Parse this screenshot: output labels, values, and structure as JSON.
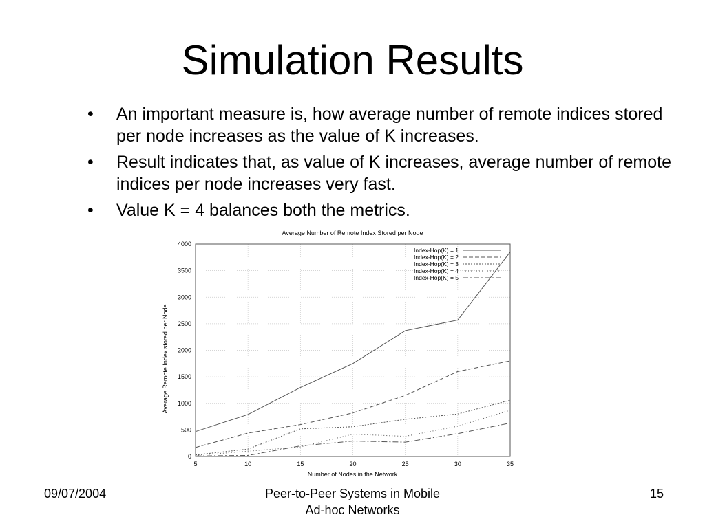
{
  "slide": {
    "title": "Simulation Results",
    "bullets": [
      "An important measure is, how average number of remote indices stored per node increases as the value of K increases.",
      "Result indicates that, as value of K increases, average number of remote indices per node increases very fast.",
      "Value K = 4 balances both the metrics."
    ],
    "bullet_symbol": "•"
  },
  "footer": {
    "date": "09/07/2004",
    "center_line1": "Peer-to-Peer Systems in Mobile",
    "center_line2": "Ad-hoc Networks",
    "page": "15"
  },
  "chart_data": {
    "type": "line",
    "title": "Average Number of Remote Index Stored per Node",
    "xlabel": "Number of Nodes in the Network",
    "ylabel": "Average Remote Index stored per Node",
    "x": [
      5,
      10,
      15,
      20,
      25,
      30,
      35
    ],
    "xlim": [
      5,
      35
    ],
    "ylim": [
      0,
      4000
    ],
    "xticks": [
      5,
      10,
      15,
      20,
      25,
      30,
      35
    ],
    "yticks": [
      0,
      500,
      1000,
      1500,
      2000,
      2500,
      3000,
      3500,
      4000
    ],
    "grid": true,
    "legend_position": "top-right",
    "series": [
      {
        "name": "Index-Hop(K) = 1",
        "values": [
          470,
          790,
          1300,
          1750,
          2370,
          2570,
          3850
        ],
        "dash": ""
      },
      {
        "name": "Index-Hop(K) = 2",
        "values": [
          170,
          440,
          600,
          820,
          1150,
          1600,
          1800
        ],
        "dash": "6,3"
      },
      {
        "name": "Index-Hop(K) = 3",
        "values": [
          30,
          140,
          520,
          560,
          700,
          800,
          1060
        ],
        "dash": "2,2"
      },
      {
        "name": "Index-Hop(K) = 4",
        "values": [
          20,
          100,
          180,
          420,
          380,
          570,
          870
        ],
        "dash": "1,3"
      },
      {
        "name": "Index-Hop(K) = 5",
        "values": [
          10,
          20,
          200,
          290,
          270,
          430,
          630
        ],
        "dash": "8,3,2,3"
      }
    ]
  }
}
